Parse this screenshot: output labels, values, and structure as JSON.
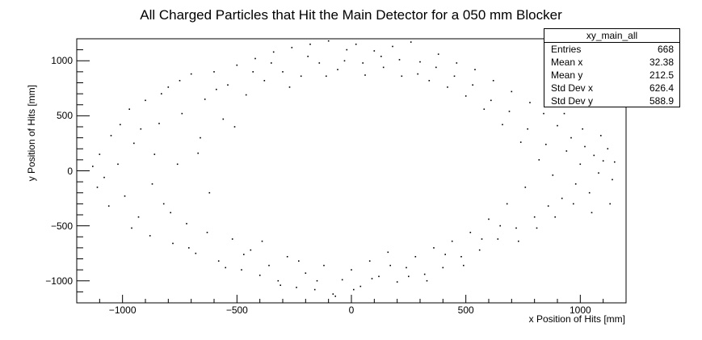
{
  "chart_data": {
    "type": "scatter",
    "title": "All Charged Particles that Hit the Main Detector for a 050 mm Blocker",
    "xlabel": "x Position of Hits [mm]",
    "ylabel": "y Position of Hits [mm]",
    "xlim": [
      -1200,
      1200
    ],
    "ylim": [
      -1200,
      1200
    ],
    "x_ticks": [
      "−1000",
      "−500",
      "0",
      "500",
      "1000"
    ],
    "y_ticks": [
      "1000",
      "500",
      "0",
      "−500",
      "−1000"
    ],
    "grid": false,
    "marker_color": "#000000",
    "distribution": "elliptical ring of hits, outer semi-axes ~1150 x ~1150 mm, inner empty region ~650 x 600 mm centered near (0, 100)",
    "points": [
      [
        -1130,
        40
      ],
      [
        -1100,
        150
      ],
      [
        -1080,
        -60
      ],
      [
        -1050,
        320
      ],
      [
        -1010,
        420
      ],
      [
        -990,
        -230
      ],
      [
        -970,
        560
      ],
      [
        -950,
        250
      ],
      [
        -930,
        -420
      ],
      [
        -900,
        640
      ],
      [
        -880,
        -590
      ],
      [
        -860,
        150
      ],
      [
        -840,
        430
      ],
      [
        -820,
        -300
      ],
      [
        -800,
        760
      ],
      [
        -780,
        -660
      ],
      [
        -760,
        60
      ],
      [
        -740,
        520
      ],
      [
        -720,
        -480
      ],
      [
        -700,
        880
      ],
      [
        -680,
        -750
      ],
      [
        -660,
        300
      ],
      [
        -640,
        650
      ],
      [
        -620,
        -200
      ],
      [
        -600,
        900
      ],
      [
        -580,
        -820
      ],
      [
        -560,
        470
      ],
      [
        -540,
        780
      ],
      [
        -520,
        -620
      ],
      [
        -500,
        960
      ],
      [
        -480,
        -900
      ],
      [
        -460,
        690
      ],
      [
        -440,
        -720
      ],
      [
        -420,
        1020
      ],
      [
        -400,
        -950
      ],
      [
        -380,
        820
      ],
      [
        -360,
        -860
      ],
      [
        -340,
        1080
      ],
      [
        -320,
        -1000
      ],
      [
        -300,
        900
      ],
      [
        -280,
        -780
      ],
      [
        -260,
        1120
      ],
      [
        -240,
        -1060
      ],
      [
        -220,
        860
      ],
      [
        -200,
        -930
      ],
      [
        -180,
        1150
      ],
      [
        -160,
        -1080
      ],
      [
        -140,
        980
      ],
      [
        -120,
        -860
      ],
      [
        -100,
        1180
      ],
      [
        -80,
        -1120
      ],
      [
        -60,
        920
      ],
      [
        -40,
        -990
      ],
      [
        -20,
        1100
      ],
      [
        0,
        -900
      ],
      [
        20,
        1150
      ],
      [
        40,
        -1050
      ],
      [
        60,
        870
      ],
      [
        80,
        -820
      ],
      [
        100,
        1090
      ],
      [
        120,
        -960
      ],
      [
        140,
        940
      ],
      [
        160,
        -740
      ],
      [
        180,
        1130
      ],
      [
        200,
        -1010
      ],
      [
        220,
        860
      ],
      [
        240,
        -880
      ],
      [
        260,
        1170
      ],
      [
        280,
        -780
      ],
      [
        300,
        990
      ],
      [
        320,
        -940
      ],
      [
        340,
        820
      ],
      [
        360,
        -700
      ],
      [
        380,
        1060
      ],
      [
        400,
        -880
      ],
      [
        420,
        760
      ],
      [
        440,
        -640
      ],
      [
        460,
        980
      ],
      [
        480,
        -780
      ],
      [
        500,
        680
      ],
      [
        520,
        -560
      ],
      [
        540,
        920
      ],
      [
        560,
        -720
      ],
      [
        580,
        560
      ],
      [
        600,
        -440
      ],
      [
        620,
        820
      ],
      [
        640,
        -620
      ],
      [
        660,
        420
      ],
      [
        680,
        -300
      ],
      [
        700,
        720
      ],
      [
        720,
        -520
      ],
      [
        740,
        260
      ],
      [
        760,
        -150
      ],
      [
        780,
        620
      ],
      [
        800,
        -420
      ],
      [
        820,
        100
      ],
      [
        840,
        520
      ],
      [
        860,
        -320
      ],
      [
        880,
        -40
      ],
      [
        900,
        410
      ],
      [
        920,
        -250
      ],
      [
        940,
        180
      ],
      [
        960,
        300
      ],
      [
        980,
        -120
      ],
      [
        1000,
        60
      ],
      [
        1020,
        220
      ],
      [
        1040,
        -200
      ],
      [
        1060,
        140
      ],
      [
        1080,
        -20
      ],
      [
        1100,
        90
      ],
      [
        1120,
        200
      ],
      [
        1140,
        -80
      ],
      [
        -1110,
        -150
      ],
      [
        -1060,
        -320
      ],
      [
        -1020,
        60
      ],
      [
        -960,
        -520
      ],
      [
        -920,
        380
      ],
      [
        -870,
        -120
      ],
      [
        -830,
        700
      ],
      [
        -790,
        -380
      ],
      [
        -750,
        820
      ],
      [
        -710,
        -700
      ],
      [
        -670,
        160
      ],
      [
        -630,
        -560
      ],
      [
        -590,
        740
      ],
      [
        -550,
        -880
      ],
      [
        -510,
        400
      ],
      [
        -470,
        -760
      ],
      [
        -430,
        900
      ],
      [
        -390,
        -640
      ],
      [
        -350,
        980
      ],
      [
        -310,
        -1040
      ],
      [
        -270,
        760
      ],
      [
        -230,
        -820
      ],
      [
        -190,
        1040
      ],
      [
        -150,
        -1000
      ],
      [
        -110,
        860
      ],
      [
        -70,
        -1140
      ],
      [
        -30,
        1000
      ],
      [
        10,
        -1080
      ],
      [
        50,
        980
      ],
      [
        90,
        -980
      ],
      [
        130,
        1040
      ],
      [
        170,
        -860
      ],
      [
        210,
        1010
      ],
      [
        250,
        -960
      ],
      [
        290,
        880
      ],
      [
        330,
        -1000
      ],
      [
        370,
        940
      ],
      [
        410,
        -760
      ],
      [
        450,
        860
      ],
      [
        490,
        -860
      ],
      [
        530,
        780
      ],
      [
        570,
        -620
      ],
      [
        610,
        640
      ],
      [
        650,
        -500
      ],
      [
        690,
        540
      ],
      [
        730,
        -640
      ],
      [
        770,
        380
      ],
      [
        810,
        -520
      ],
      [
        850,
        240
      ],
      [
        890,
        -420
      ],
      [
        930,
        520
      ],
      [
        970,
        -300
      ],
      [
        1010,
        380
      ],
      [
        1050,
        -380
      ],
      [
        1090,
        320
      ],
      [
        1130,
        -300
      ],
      [
        1150,
        80
      ]
    ]
  },
  "stats": {
    "name": "xy_main_all",
    "rows": [
      {
        "label": "Entries",
        "value": "668"
      },
      {
        "label": "Mean x",
        "value": "32.38"
      },
      {
        "label": "Mean y",
        "value": "212.5"
      },
      {
        "label": "Std Dev x",
        "value": "626.4"
      },
      {
        "label": "Std Dev y",
        "value": "588.9"
      }
    ]
  }
}
